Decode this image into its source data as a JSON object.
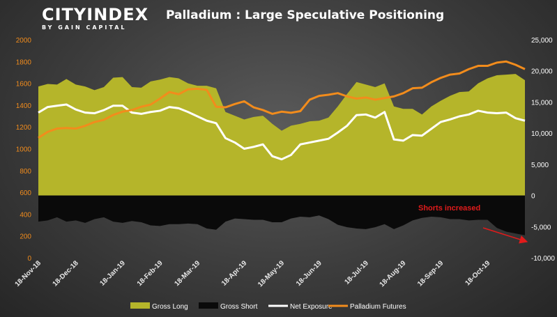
{
  "brand": {
    "logo_main": "CITYINDEX",
    "logo_sub": "BY GAIN CAPITAL"
  },
  "chart_data": {
    "type": "area",
    "title": "Palladium : Large Speculative Positioning",
    "categories": [
      "18-Nov-18",
      "25-Nov-18",
      "2-Dec-18",
      "9-Dec-18",
      "16-Dec-18",
      "23-Dec-18",
      "30-Dec-18",
      "6-Jan-19",
      "13-Jan-19",
      "20-Jan-19",
      "27-Jan-19",
      "3-Feb-19",
      "10-Feb-19",
      "17-Feb-19",
      "24-Feb-19",
      "3-Mar-19",
      "10-Mar-19",
      "17-Mar-19",
      "24-Mar-19",
      "31-Mar-19",
      "7-Apr-19",
      "14-Apr-19",
      "21-Apr-19",
      "28-Apr-19",
      "5-May-19",
      "12-May-19",
      "19-May-19",
      "26-May-19",
      "2-Jun-19",
      "9-Jun-19",
      "16-Jun-19",
      "23-Jun-19",
      "30-Jun-19",
      "7-Jul-19",
      "14-Jul-19",
      "21-Jul-19",
      "28-Jul-19",
      "4-Aug-19",
      "11-Aug-19",
      "18-Aug-19",
      "25-Aug-19",
      "1-Sep-19",
      "8-Sep-19",
      "15-Sep-19",
      "22-Sep-19",
      "29-Sep-19",
      "6-Oct-19",
      "13-Oct-19",
      "20-Oct-19",
      "27-Oct-19",
      "3-Nov-19",
      "10-Nov-19",
      "17-Nov-19"
    ],
    "x_tick_labels": [
      "18-Nov-18",
      "18-Dec-18",
      "18-Jan-19",
      "18-Feb-19",
      "18-Mar-19",
      "18-Apr-19",
      "18-May-19",
      "18-Jun-19",
      "18-Jul-19",
      "18-Aug-19",
      "18-Sep-19",
      "18-Oct-19"
    ],
    "x_tick_indices": [
      0,
      4,
      9,
      13,
      17,
      22,
      26,
      30,
      35,
      39,
      43,
      48
    ],
    "left_axis": {
      "range": [
        0,
        2000
      ],
      "ticks": [
        "0",
        "200",
        "400",
        "600",
        "800",
        "1000",
        "1200",
        "1400",
        "1600",
        "1800",
        "2000"
      ]
    },
    "right_axis": {
      "range": [
        -10000,
        25000
      ],
      "ticks": [
        "-10,000",
        "-5,000",
        "0",
        "5,000",
        "10,000",
        "15,000",
        "20,000",
        "25,000"
      ]
    },
    "series": [
      {
        "name": "Gross Long",
        "axis": "right",
        "kind": "area",
        "color": "#b5b52a",
        "values": [
          17500,
          17900,
          17800,
          18700,
          17800,
          17500,
          16900,
          17400,
          18900,
          19000,
          17400,
          17300,
          18300,
          18600,
          19000,
          18800,
          18000,
          17600,
          17600,
          17200,
          13400,
          12800,
          12200,
          12600,
          12800,
          11500,
          10400,
          11200,
          11500,
          11900,
          12000,
          12500,
          14300,
          16300,
          18200,
          17800,
          17400,
          18000,
          14300,
          13900,
          13900,
          13000,
          14300,
          15200,
          16000,
          16600,
          16700,
          18000,
          18800,
          19300,
          19400,
          19500,
          18500
        ]
      },
      {
        "name": "Gross Short",
        "axis": "right",
        "kind": "area",
        "color": "#0a0a0a",
        "values": [
          -4200,
          -4000,
          -3500,
          -4200,
          -4000,
          -4400,
          -3800,
          -3500,
          -4200,
          -4400,
          -4100,
          -4300,
          -4800,
          -4900,
          -4600,
          -4600,
          -4500,
          -4600,
          -5300,
          -5500,
          -4200,
          -3700,
          -3800,
          -3900,
          -3900,
          -4300,
          -4300,
          -3700,
          -3400,
          -3500,
          -3200,
          -3800,
          -4700,
          -5100,
          -5300,
          -5400,
          -5100,
          -4600,
          -5400,
          -4800,
          -4000,
          -3600,
          -3400,
          -3500,
          -3800,
          -3800,
          -4000,
          -3900,
          -3900,
          -5200,
          -5800,
          -6100,
          -6400
        ]
      },
      {
        "name": "Net Exposure",
        "axis": "right",
        "kind": "line",
        "color": "#ffffff",
        "values": [
          13300,
          14200,
          14400,
          14600,
          13800,
          13300,
          13200,
          13700,
          14400,
          14400,
          13300,
          13100,
          13400,
          13600,
          14200,
          14000,
          13400,
          12700,
          12000,
          11600,
          9200,
          8500,
          7500,
          7800,
          8200,
          6300,
          5800,
          6500,
          8200,
          8500,
          8800,
          9100,
          10100,
          11200,
          12900,
          13000,
          12500,
          13400,
          9000,
          8800,
          9700,
          9600,
          10700,
          11800,
          12200,
          12700,
          13000,
          13600,
          13300,
          13200,
          13300,
          12400,
          12000
        ]
      },
      {
        "name": "Palladium Futures",
        "axis": "left",
        "kind": "line",
        "color": "#f28c1c",
        "values": [
          1100,
          1155,
          1185,
          1190,
          1185,
          1210,
          1245,
          1265,
          1310,
          1340,
          1355,
          1385,
          1405,
          1460,
          1520,
          1500,
          1545,
          1550,
          1540,
          1385,
          1380,
          1410,
          1435,
          1380,
          1355,
          1320,
          1340,
          1330,
          1345,
          1450,
          1485,
          1495,
          1510,
          1480,
          1460,
          1470,
          1450,
          1465,
          1480,
          1510,
          1555,
          1560,
          1610,
          1650,
          1680,
          1690,
          1730,
          1760,
          1760,
          1790,
          1800,
          1770,
          1730
        ]
      }
    ],
    "legend": [
      "Gross Long",
      "Gross Short",
      "Net Exposure",
      "Palladium Futures"
    ],
    "legend_position": "bottom",
    "annotation": {
      "text": "Shorts increased",
      "color": "#e11b1b"
    },
    "grid": false
  }
}
